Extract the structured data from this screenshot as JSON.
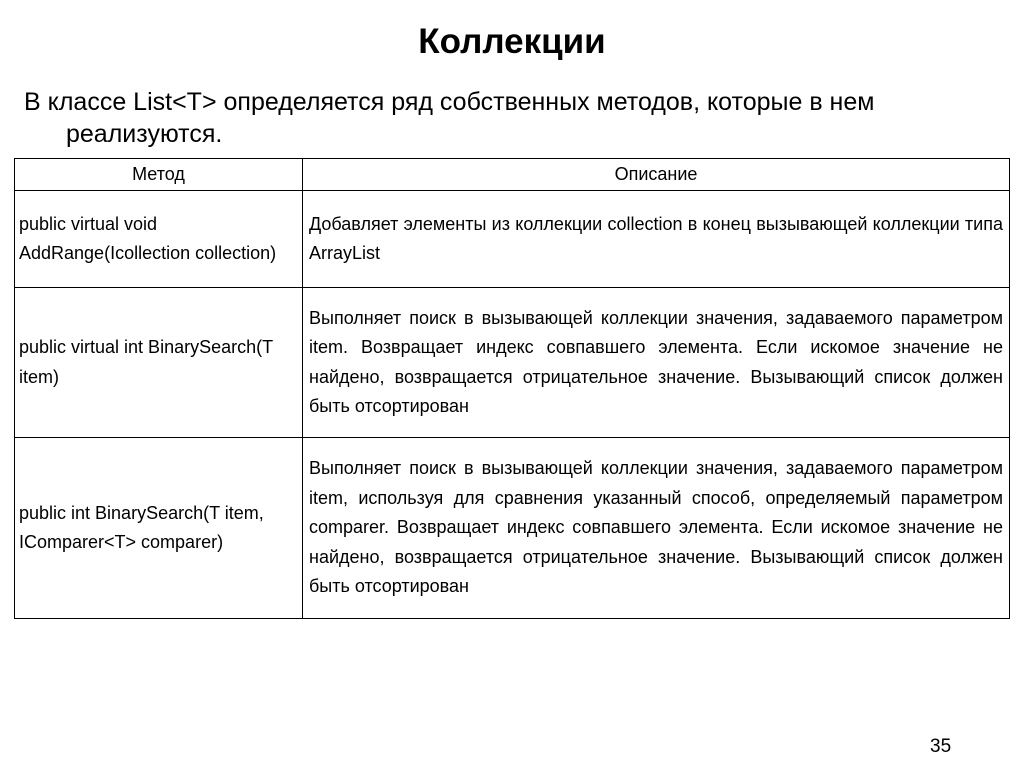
{
  "title": "Коллекции",
  "intro": [
    "В классе List<T> определяется ряд собственных методов, которые в нем",
    "реализуются."
  ],
  "table": {
    "headers": [
      "Метод",
      "Описание"
    ],
    "rows": [
      {
        "method": "public virtual void AddRange(Icollection collection)",
        "description": "Добавляет элементы из коллекции collection в конец вызывающей коллекции типа ArrayList"
      },
      {
        "method": "public virtual int BinarySearch(T item)",
        "description": "Выполняет поиск в вызывающей коллекции значения, задаваемого параметром item. Возвращает индекс совпавшего элемента. Если искомое значение не найдено, возвращается отрицательное значение. Вызывающий список должен быть отсортирован"
      },
      {
        "method": "public int BinarySearch(T item, IComparer<T> comparer)",
        "description": "Выполняет поиск в вызывающей коллекции значения, задаваемого параметром item, используя для сравнения указанный способ, определяемый параметром comparer. Возвращает индекс совпавшего элемента. Если искомое значение не найдено, возвращается отрицательное значение. Вызывающий список должен быть отсортирован"
      }
    ]
  },
  "page_number": "35"
}
